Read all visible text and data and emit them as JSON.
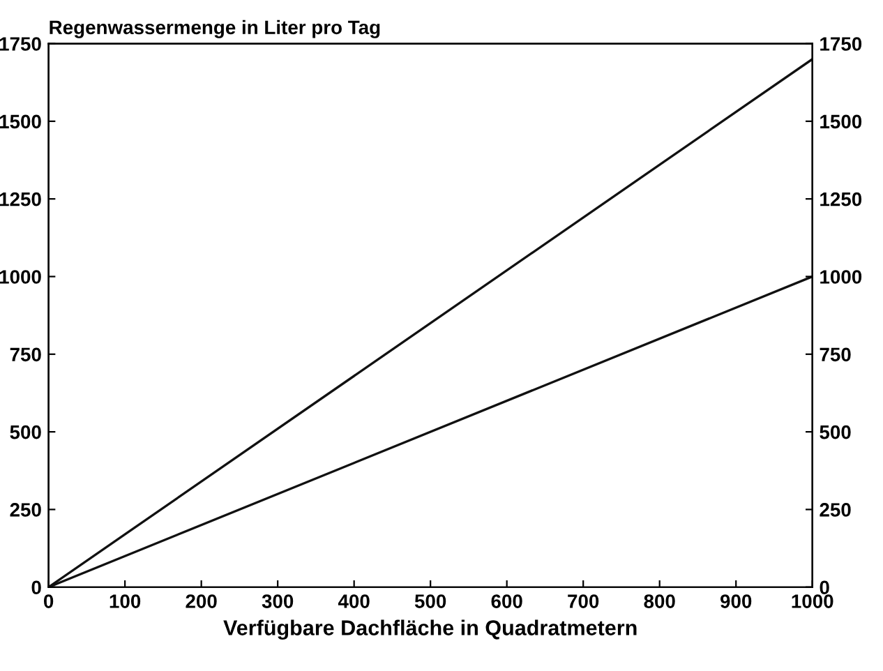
{
  "chart_data": {
    "type": "line",
    "ylabel": "Regenwassermenge in Liter pro Tag",
    "xlabel": "Verfügbare Dachfläche in Quadratmetern",
    "x": [
      0,
      1000
    ],
    "series": [
      {
        "color": "#111111",
        "values": [
          0,
          1700
        ]
      },
      {
        "color": "#111111",
        "values": [
          0,
          1000
        ]
      }
    ],
    "xlim": [
      0,
      1000
    ],
    "xticks": [
      0,
      100,
      200,
      300,
      400,
      500,
      600,
      700,
      800,
      900,
      1000
    ],
    "ylim": [
      0,
      1750
    ],
    "yticks": [
      0,
      250,
      500,
      750,
      1000,
      1250,
      1500,
      1750
    ],
    "y2lim": [
      0,
      1750
    ],
    "y2ticks": [
      0,
      250,
      500,
      750,
      1000,
      1250,
      1500,
      1750
    ],
    "grid": false,
    "legend": false,
    "marker": "none",
    "line_style": "solid"
  }
}
